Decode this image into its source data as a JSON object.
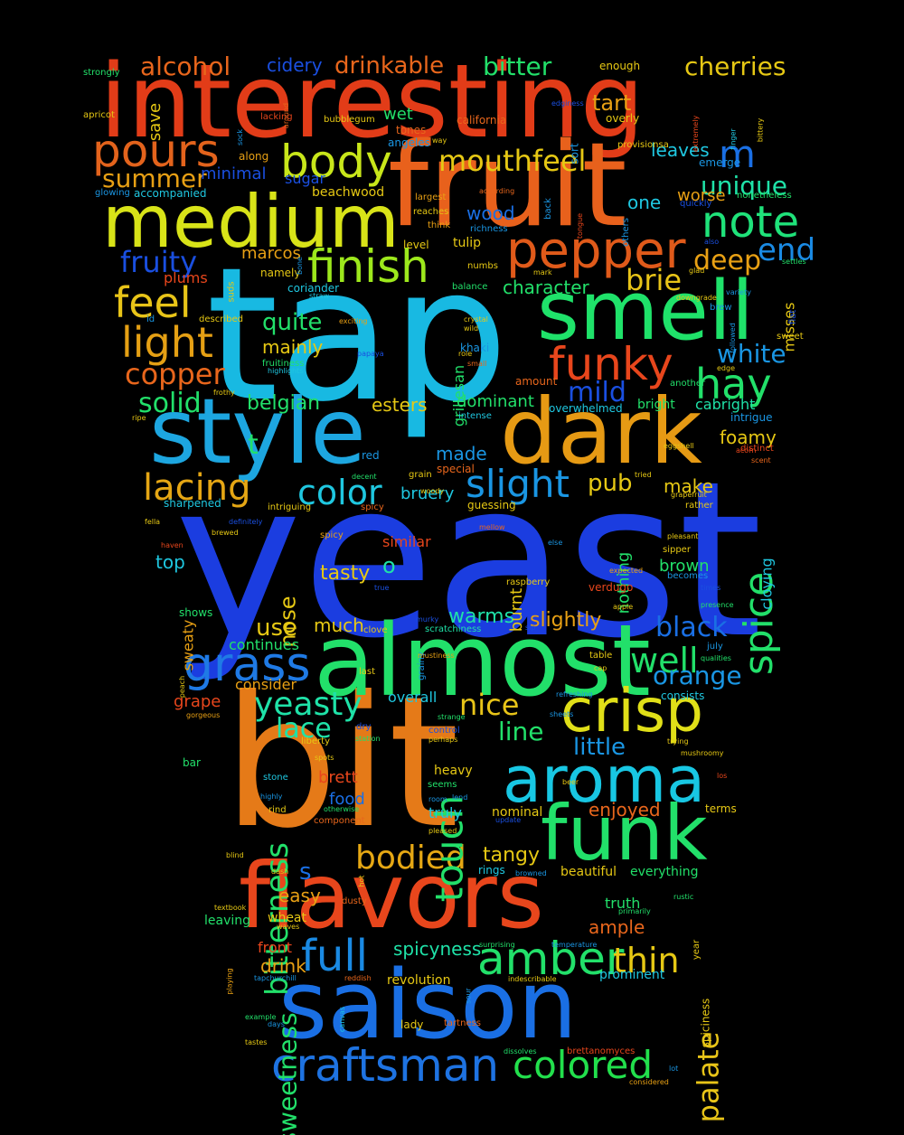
{
  "words": [
    {
      "text": "yeast",
      "color": "#1b3de0"
    },
    {
      "text": "tap",
      "color": "#18b9e2"
    },
    {
      "text": "bit",
      "color": "#e57a18"
    },
    {
      "text": "interesting",
      "color": "#e23c18"
    },
    {
      "text": "almost",
      "color": "#22e06a"
    },
    {
      "text": "fruit",
      "color": "#e8611c"
    },
    {
      "text": "medium",
      "color": "#d8e318"
    },
    {
      "text": "style",
      "color": "#1da6e0"
    },
    {
      "text": "dark",
      "color": "#e69a14"
    },
    {
      "text": "smell",
      "color": "#1fe26a"
    },
    {
      "text": "saison",
      "color": "#1a6fe4"
    },
    {
      "text": "flavors",
      "color": "#e8461c"
    },
    {
      "text": "funk",
      "color": "#22e06a"
    },
    {
      "text": "aroma",
      "color": "#18c7e3"
    },
    {
      "text": "crisp",
      "color": "#e0df18"
    },
    {
      "text": "pepper",
      "color": "#e05a1a"
    },
    {
      "text": "pours",
      "color": "#e3631c"
    },
    {
      "text": "body",
      "color": "#c8e61a"
    },
    {
      "text": "finish",
      "color": "#9de81c"
    },
    {
      "text": "craftsman",
      "color": "#1e73e2"
    },
    {
      "text": "amber",
      "color": "#22e06a"
    },
    {
      "text": "full",
      "color": "#1a8ae3"
    },
    {
      "text": "colored",
      "color": "#22e04c"
    },
    {
      "text": "grass",
      "color": "#1f7ae5"
    },
    {
      "text": "light",
      "color": "#e5a014"
    },
    {
      "text": "funky",
      "color": "#e8461c"
    },
    {
      "text": "note",
      "color": "#1fe27a"
    },
    {
      "text": "hay",
      "color": "#22e06a"
    },
    {
      "text": "feel",
      "color": "#e8c418"
    },
    {
      "text": "lacing",
      "color": "#e5a614"
    },
    {
      "text": "spice",
      "color": "#22e06a"
    },
    {
      "text": "slight",
      "color": "#1a96e3"
    },
    {
      "text": "color",
      "color": "#1fc7e0"
    },
    {
      "text": "yeasty",
      "color": "#1fe2a8"
    },
    {
      "text": "mouthfeel",
      "color": "#e6c814"
    },
    {
      "text": "summer",
      "color": "#e8a014"
    },
    {
      "text": "copper",
      "color": "#e8661c"
    },
    {
      "text": "solid",
      "color": "#22e06a"
    },
    {
      "text": "fruity",
      "color": "#1a4fe0"
    },
    {
      "text": "unique",
      "color": "#1fe2a8"
    },
    {
      "text": "deep",
      "color": "#e8a014"
    },
    {
      "text": "end",
      "color": "#1a8ae3"
    },
    {
      "text": "brie",
      "color": "#e8c418"
    },
    {
      "text": "bodied",
      "color": "#e6a814"
    },
    {
      "text": "bitterness",
      "color": "#22e06a"
    },
    {
      "text": "sweetness",
      "color": "#22e06a"
    },
    {
      "text": "touch",
      "color": "#22e06a"
    },
    {
      "text": "thin",
      "color": "#e6c814"
    },
    {
      "text": "palate",
      "color": "#e8c418"
    },
    {
      "text": "nice",
      "color": "#e8c418"
    },
    {
      "text": "lace",
      "color": "#1fe2a8"
    },
    {
      "text": "well",
      "color": "#22e06a"
    },
    {
      "text": "black",
      "color": "#1a6fe4"
    },
    {
      "text": "orange",
      "color": "#1a96e3"
    },
    {
      "text": "white",
      "color": "#1a96e3"
    },
    {
      "text": "mild",
      "color": "#1a4fe0"
    },
    {
      "text": "cherries",
      "color": "#e6c814"
    },
    {
      "text": "drinkable",
      "color": "#e8661c"
    },
    {
      "text": "alcohol",
      "color": "#e8661c"
    },
    {
      "text": "bitter",
      "color": "#22e06a"
    },
    {
      "text": "cidery",
      "color": "#1a4fe0"
    },
    {
      "text": "quite",
      "color": "#22e06a"
    },
    {
      "text": "mainly",
      "color": "#e6c814"
    },
    {
      "text": "belgian",
      "color": "#22e06a"
    },
    {
      "text": "character",
      "color": "#22e06a"
    },
    {
      "text": "tangy",
      "color": "#e6c814"
    },
    {
      "text": "tasty",
      "color": "#e6c814"
    },
    {
      "text": "warms",
      "color": "#1fe2a8"
    },
    {
      "text": "slightly",
      "color": "#e8a014"
    },
    {
      "text": "line",
      "color": "#22e06a"
    },
    {
      "text": "little",
      "color": "#1a96e3"
    },
    {
      "text": "nose",
      "color": "#e6c814"
    },
    {
      "text": "use",
      "color": "#e6c814"
    },
    {
      "text": "much",
      "color": "#e6c814"
    },
    {
      "text": "easy",
      "color": "#e8a014"
    },
    {
      "text": "drink",
      "color": "#e8a014"
    },
    {
      "text": "enjoyed",
      "color": "#e8661c"
    },
    {
      "text": "ample",
      "color": "#e8661c"
    },
    {
      "text": "spicyness",
      "color": "#1fe2a8"
    },
    {
      "text": "tart",
      "color": "#e8a014"
    },
    {
      "text": "leaves",
      "color": "#1fc7e0"
    },
    {
      "text": "worse",
      "color": "#e8a014"
    },
    {
      "text": "one",
      "color": "#1fc7e0"
    },
    {
      "text": "m",
      "color": "#1a6fe4"
    },
    {
      "text": "t",
      "color": "#22e06a"
    },
    {
      "text": "s",
      "color": "#1a6fe4"
    },
    {
      "text": "o",
      "color": "#1fe2a8"
    },
    {
      "text": "pub",
      "color": "#e6c814"
    },
    {
      "text": "make",
      "color": "#e6c814"
    },
    {
      "text": "foamy",
      "color": "#e6c814"
    },
    {
      "text": "bruery",
      "color": "#1fc7e0"
    },
    {
      "text": "made",
      "color": "#1a96e3"
    },
    {
      "text": "esters",
      "color": "#e6c814"
    },
    {
      "text": "dominant",
      "color": "#22e06a"
    },
    {
      "text": "wood",
      "color": "#1a6fe4"
    },
    {
      "text": "minimal",
      "color": "#1a4fe0"
    },
    {
      "text": "sugar",
      "color": "#1a4fe0"
    },
    {
      "text": "beachwood",
      "color": "#e6c814"
    },
    {
      "text": "plums",
      "color": "#e8461c"
    },
    {
      "text": "marcos",
      "color": "#e8a014"
    },
    {
      "text": "brett",
      "color": "#e8461c"
    },
    {
      "text": "food",
      "color": "#1a6fe4"
    },
    {
      "text": "truly",
      "color": "#1fc7e0"
    },
    {
      "text": "similar",
      "color": "#e8461c"
    },
    {
      "text": "burnt",
      "color": "#e6c814"
    },
    {
      "text": "nothing",
      "color": "#22e06a"
    },
    {
      "text": "brown",
      "color": "#22e06a"
    },
    {
      "text": "grillesan",
      "color": "#22e06a"
    },
    {
      "text": "cloying",
      "color": "#1fc7e0"
    },
    {
      "text": "misses",
      "color": "#e6c814"
    },
    {
      "text": "cabright",
      "color": "#1fe2a8"
    },
    {
      "text": "consider",
      "color": "#e8a014"
    },
    {
      "text": "continues",
      "color": "#22e06a"
    },
    {
      "text": "overall",
      "color": "#1fc7e0"
    },
    {
      "text": "grape",
      "color": "#e8461c"
    },
    {
      "text": "top",
      "color": "#1fc7e0"
    },
    {
      "text": "sweaty",
      "color": "#e8a014"
    },
    {
      "text": "front",
      "color": "#e8461c"
    },
    {
      "text": "wheat",
      "color": "#e6c814"
    },
    {
      "text": "leaving",
      "color": "#22e06a"
    },
    {
      "text": "heavy",
      "color": "#e6c814"
    },
    {
      "text": "truth",
      "color": "#22e06a"
    },
    {
      "text": "spicy",
      "color": "#e8a014"
    },
    {
      "text": "revolution",
      "color": "#e6c814"
    },
    {
      "text": "prominent",
      "color": "#1fc7e0"
    },
    {
      "text": "beautiful",
      "color": "#e6c814"
    },
    {
      "text": "everything",
      "color": "#22e06a"
    },
    {
      "text": "nominal",
      "color": "#e6c814"
    },
    {
      "text": "save",
      "color": "#e6c814"
    },
    {
      "text": "wet",
      "color": "#22e06a"
    },
    {
      "text": "strongly",
      "color": "#22e06a"
    },
    {
      "text": "apricot",
      "color": "#e6c814"
    },
    {
      "text": "enough",
      "color": "#e6c814"
    },
    {
      "text": "overly",
      "color": "#e6c814"
    },
    {
      "text": "california",
      "color": "#e8661c"
    },
    {
      "text": "angeles",
      "color": "#1a96e3"
    },
    {
      "text": "tones",
      "color": "#e8661c"
    },
    {
      "text": "bubblegum",
      "color": "#e6c814"
    },
    {
      "text": "lacking",
      "color": "#e8461c"
    },
    {
      "text": "along",
      "color": "#e8a014"
    },
    {
      "text": "accompanied",
      "color": "#1fc7e0"
    },
    {
      "text": "glowing",
      "color": "#1a96e3"
    },
    {
      "text": "reaches",
      "color": "#e6c814"
    },
    {
      "text": "largest",
      "color": "#e8a014"
    },
    {
      "text": "think",
      "color": "#e8a014"
    },
    {
      "text": "richness",
      "color": "#1a96e3"
    },
    {
      "text": "tulip",
      "color": "#e6c814"
    },
    {
      "text": "level",
      "color": "#e6c814"
    },
    {
      "text": "numbs",
      "color": "#e6c814"
    },
    {
      "text": "balance",
      "color": "#22e06a"
    },
    {
      "text": "coriander",
      "color": "#1fc7e0"
    },
    {
      "text": "namely",
      "color": "#e6c814"
    },
    {
      "text": "straw",
      "color": "#1fc7e0"
    },
    {
      "text": "exciting",
      "color": "#e8a014"
    },
    {
      "text": "fruitiness",
      "color": "#22e06a"
    },
    {
      "text": "highlights",
      "color": "#1fc7e0"
    },
    {
      "text": "papaya",
      "color": "#1a4fe0"
    },
    {
      "text": "frothy",
      "color": "#e6c814"
    },
    {
      "text": "ripe",
      "color": "#e6c814"
    },
    {
      "text": "khaki",
      "color": "#1a96e3"
    },
    {
      "text": "intense",
      "color": "#1fc7e0"
    },
    {
      "text": "overwhelmed",
      "color": "#1fc7e0"
    },
    {
      "text": "bright",
      "color": "#22e06a"
    },
    {
      "text": "eggshell",
      "color": "#e6c814"
    },
    {
      "text": "red",
      "color": "#1a96e3"
    },
    {
      "text": "special",
      "color": "#e8661c"
    },
    {
      "text": "sharpened",
      "color": "#1fc7e0"
    },
    {
      "text": "intriguing",
      "color": "#e6c814"
    },
    {
      "text": "guessing",
      "color": "#e6c814"
    },
    {
      "text": "mellow",
      "color": "#e8661c"
    },
    {
      "text": "raspberry",
      "color": "#e6c814"
    },
    {
      "text": "verdugo",
      "color": "#e8461c"
    },
    {
      "text": "apple",
      "color": "#e6c814"
    },
    {
      "text": "presence",
      "color": "#22e06a"
    },
    {
      "text": "qualities",
      "color": "#22e06a"
    },
    {
      "text": "july",
      "color": "#1a96e3"
    },
    {
      "text": "consists",
      "color": "#1fc7e0"
    },
    {
      "text": "refreshing",
      "color": "#1a96e3"
    },
    {
      "text": "table",
      "color": "#e6c814"
    },
    {
      "text": "cap",
      "color": "#e6c814"
    },
    {
      "text": "sheets",
      "color": "#1a96e3"
    },
    {
      "text": "trying",
      "color": "#e6c814"
    },
    {
      "text": "mushroomy",
      "color": "#e6c814"
    },
    {
      "text": "los",
      "color": "#e8461c"
    },
    {
      "text": "terms",
      "color": "#e6c814"
    },
    {
      "text": "rustic",
      "color": "#22e06a"
    },
    {
      "text": "year",
      "color": "#e6c814"
    },
    {
      "text": "spiciness",
      "color": "#e6c814"
    },
    {
      "text": "lot",
      "color": "#1a96e3"
    },
    {
      "text": "considered",
      "color": "#e8a014"
    },
    {
      "text": "brettanomyces",
      "color": "#e8461c"
    },
    {
      "text": "dissolves",
      "color": "#22e06a"
    },
    {
      "text": "tartness",
      "color": "#e8661c"
    },
    {
      "text": "lady",
      "color": "#e6c814"
    },
    {
      "text": "days",
      "color": "#1a96e3"
    },
    {
      "text": "example",
      "color": "#22e06a"
    },
    {
      "text": "tastes",
      "color": "#e6c814"
    },
    {
      "text": "textbook",
      "color": "#e6c814"
    },
    {
      "text": "playing",
      "color": "#e8a014"
    },
    {
      "text": "waves",
      "color": "#e6c814"
    },
    {
      "text": "tapchurchill",
      "color": "#1a96e3"
    },
    {
      "text": "reddish",
      "color": "#e8661c"
    },
    {
      "text": "canvas",
      "color": "#1fc7e0"
    },
    {
      "text": "sour",
      "color": "#1a96e3"
    },
    {
      "text": "indescribable",
      "color": "#e6c814"
    },
    {
      "text": "temperature",
      "color": "#1a96e3"
    },
    {
      "text": "surprising",
      "color": "#22e06a"
    },
    {
      "text": "primarily",
      "color": "#22e06a"
    },
    {
      "text": "dusty",
      "color": "#e8661c"
    },
    {
      "text": "hot",
      "color": "#e6c814"
    },
    {
      "text": "browned",
      "color": "#1a96e3"
    },
    {
      "text": "rings",
      "color": "#1fc7e0"
    },
    {
      "text": "dash",
      "color": "#e6c814"
    },
    {
      "text": "blind",
      "color": "#e6c814"
    },
    {
      "text": "component",
      "color": "#e8661c"
    },
    {
      "text": "update",
      "color": "#1a4fe0"
    },
    {
      "text": "otherwise",
      "color": "#22e06a"
    },
    {
      "text": "pleased",
      "color": "#e6c814"
    },
    {
      "text": "lend",
      "color": "#1a96e3"
    },
    {
      "text": "room",
      "color": "#1a96e3"
    },
    {
      "text": "seems",
      "color": "#22e06a"
    },
    {
      "text": "beer",
      "color": "#e6c814"
    },
    {
      "text": "stone",
      "color": "#1fc7e0"
    },
    {
      "text": "highly",
      "color": "#1a96e3"
    },
    {
      "text": "rind",
      "color": "#e6c814"
    },
    {
      "text": "bar",
      "color": "#22e06a"
    },
    {
      "text": "spots",
      "color": "#e6c814"
    },
    {
      "text": "liberty",
      "color": "#e6c814"
    },
    {
      "text": "station",
      "color": "#22e06a"
    },
    {
      "text": "perhaps",
      "color": "#e6c814"
    },
    {
      "text": "control",
      "color": "#1a4fe0"
    },
    {
      "text": "strange",
      "color": "#22e06a"
    },
    {
      "text": "dry",
      "color": "#1a4fe0"
    },
    {
      "text": "gorgeous",
      "color": "#e8a014"
    },
    {
      "text": "peach",
      "color": "#e6c814"
    },
    {
      "text": "last",
      "color": "#e6c814"
    },
    {
      "text": "clove",
      "color": "#e6c814"
    },
    {
      "text": "grainy",
      "color": "#1a96e3"
    },
    {
      "text": "murky",
      "color": "#1a4fe0"
    },
    {
      "text": "mustiness",
      "color": "#e8a014"
    },
    {
      "text": "scratchiness",
      "color": "#1fe2a8"
    },
    {
      "text": "sip",
      "color": "#1a4fe0"
    },
    {
      "text": "true",
      "color": "#1a4fe0"
    },
    {
      "text": "shows",
      "color": "#22e06a"
    },
    {
      "text": "haven",
      "color": "#e8461c"
    },
    {
      "text": "fella",
      "color": "#e6c814"
    },
    {
      "text": "brewed",
      "color": "#e6c814"
    },
    {
      "text": "spicy",
      "color": "#e8661c"
    },
    {
      "text": "grain",
      "color": "#e6c814"
    },
    {
      "text": "woody",
      "color": "#e6c814"
    },
    {
      "text": "decent",
      "color": "#22e06a"
    },
    {
      "text": "definitely",
      "color": "#1a4fe0"
    },
    {
      "text": "else",
      "color": "#1a96e3"
    },
    {
      "text": "expected",
      "color": "#e8a014"
    },
    {
      "text": "times",
      "color": "#1a4fe0"
    },
    {
      "text": "becomes",
      "color": "#1a96e3"
    },
    {
      "text": "sipper",
      "color": "#e6c814"
    },
    {
      "text": "pleasant",
      "color": "#e6c814"
    },
    {
      "text": "rather",
      "color": "#e6c814"
    },
    {
      "text": "grapefruit",
      "color": "#e6c814"
    },
    {
      "text": "tried",
      "color": "#e6c814"
    },
    {
      "text": "scent",
      "color": "#e8661c"
    },
    {
      "text": "distinct",
      "color": "#e8461c"
    },
    {
      "text": "acorn",
      "color": "#e8461c"
    },
    {
      "text": "intrigue",
      "color": "#1a96e3"
    },
    {
      "text": "another",
      "color": "#22e06a"
    },
    {
      "text": "amount",
      "color": "#e8661c"
    },
    {
      "text": "small",
      "color": "#e8661c"
    },
    {
      "text": "role",
      "color": "#e6c814"
    },
    {
      "text": "wild",
      "color": "#e6c814"
    },
    {
      "text": "crystal",
      "color": "#e6c814"
    },
    {
      "text": "sweet",
      "color": "#e6c814"
    },
    {
      "text": "flat",
      "color": "#1a4fe0"
    },
    {
      "text": "settles",
      "color": "#22e06a"
    },
    {
      "text": "also",
      "color": "#1a4fe0"
    },
    {
      "text": "followed",
      "color": "#1a96e3"
    },
    {
      "text": "variety",
      "color": "#1a96e3"
    },
    {
      "text": "brew",
      "color": "#1a96e3"
    },
    {
      "text": "glad",
      "color": "#e6c814"
    },
    {
      "text": "downgrade",
      "color": "#e6c814"
    },
    {
      "text": "edge",
      "color": "#e6c814"
    },
    {
      "text": "nonetheless",
      "color": "#22e06a"
    },
    {
      "text": "quickly",
      "color": "#1a4fe0"
    },
    {
      "text": "provisionsa",
      "color": "#e6c814"
    },
    {
      "text": "emerge",
      "color": "#1a96e3"
    },
    {
      "text": "finger",
      "color": "#1fc7e0"
    },
    {
      "text": "bittery",
      "color": "#e6c814"
    },
    {
      "text": "extremely",
      "color": "#e8461c"
    },
    {
      "text": "edginess",
      "color": "#1a4fe0"
    },
    {
      "text": "way",
      "color": "#e6c814"
    },
    {
      "text": "sort",
      "color": "#1a96e3"
    },
    {
      "text": "back",
      "color": "#1a96e3"
    },
    {
      "text": "tongue",
      "color": "#e8461c"
    },
    {
      "text": "others",
      "color": "#1a96e3"
    },
    {
      "text": "according",
      "color": "#e8661c"
    },
    {
      "text": "mark",
      "color": "#e6c814"
    },
    {
      "text": "around",
      "color": "#e8661c"
    },
    {
      "text": "sock",
      "color": "#1a96e3"
    },
    {
      "text": "suds",
      "color": "#e6c814"
    },
    {
      "text": "bone",
      "color": "#1a96e3"
    },
    {
      "text": "id",
      "color": "#1a96e3"
    },
    {
      "text": "described",
      "color": "#e6c814"
    },
    {
      "text": "fashion",
      "color": "#e8a014"
    }
  ]
}
